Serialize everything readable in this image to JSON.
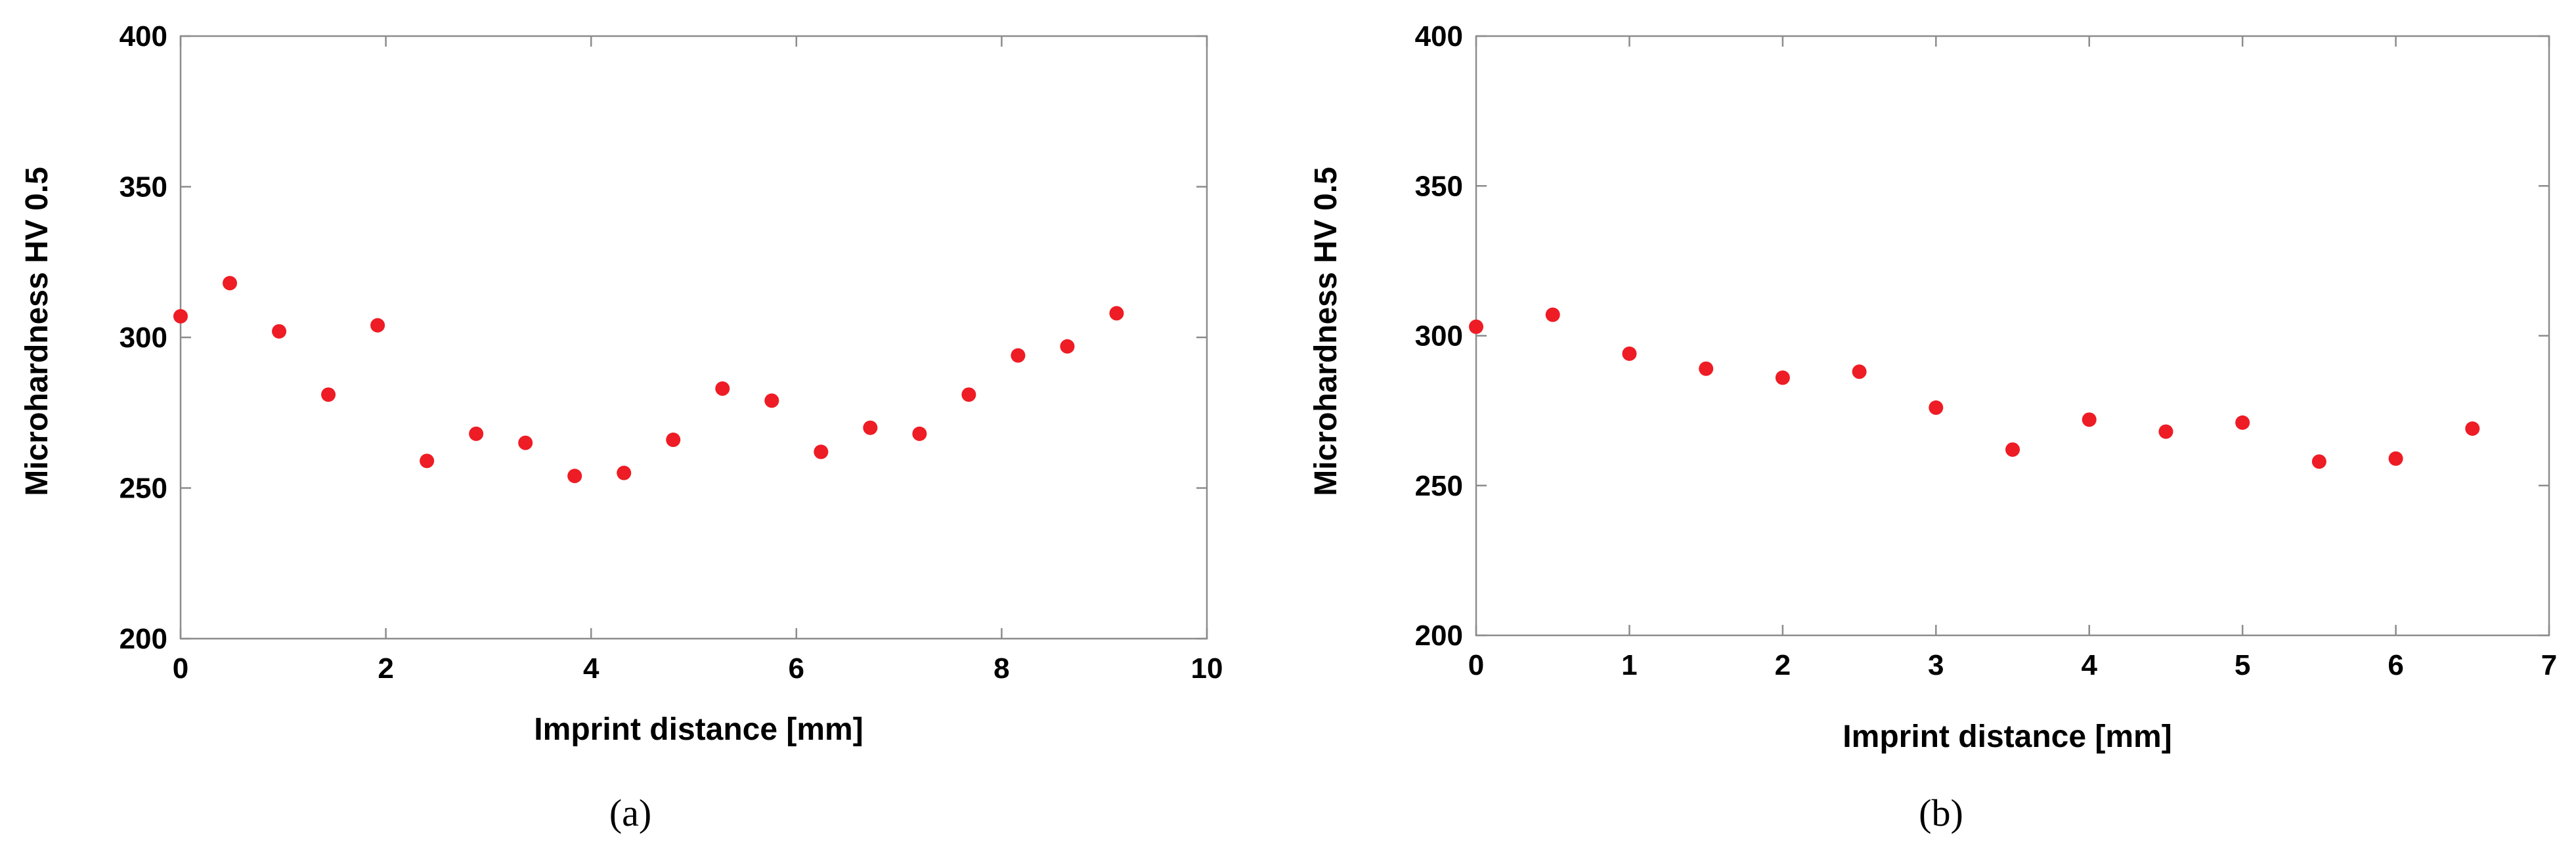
{
  "chart_data": [
    {
      "type": "scatter",
      "panel_label": "(a)",
      "xlabel": "Imprint distance [mm]",
      "ylabel": "Microhardness HV 0.5",
      "xlim": [
        0,
        10
      ],
      "ylim": [
        200,
        400
      ],
      "xticks": [
        0,
        2,
        4,
        6,
        8,
        10
      ],
      "yticks": [
        200,
        250,
        300,
        350,
        400
      ],
      "grid": false,
      "marker_color": "#ee1c25",
      "x": [
        0,
        0.48,
        0.96,
        1.44,
        1.92,
        2.4,
        2.88,
        3.36,
        3.84,
        4.32,
        4.8,
        5.28,
        5.76,
        6.24,
        6.72,
        7.2,
        7.68,
        8.16,
        8.64,
        9.12
      ],
      "y": [
        307,
        318,
        302,
        281,
        304,
        259,
        268,
        265,
        254,
        255,
        266,
        283,
        279,
        262,
        270,
        268,
        281,
        294,
        297,
        308
      ]
    },
    {
      "type": "scatter",
      "panel_label": "(b)",
      "xlabel": "Imprint distance [mm]",
      "ylabel": "Microhardness HV 0.5",
      "xlim": [
        0,
        7
      ],
      "ylim": [
        200,
        400
      ],
      "xticks": [
        0,
        1,
        2,
        3,
        4,
        5,
        6,
        7
      ],
      "yticks": [
        200,
        250,
        300,
        350,
        400
      ],
      "grid": false,
      "marker_color": "#ee1c25",
      "x": [
        0,
        0.5,
        1,
        1.5,
        2,
        2.5,
        3,
        3.5,
        4,
        4.5,
        5,
        5.5,
        6,
        6.5
      ],
      "y": [
        303,
        307,
        294,
        289,
        286,
        288,
        276,
        262,
        272,
        268,
        271,
        258,
        259,
        269
      ]
    }
  ]
}
